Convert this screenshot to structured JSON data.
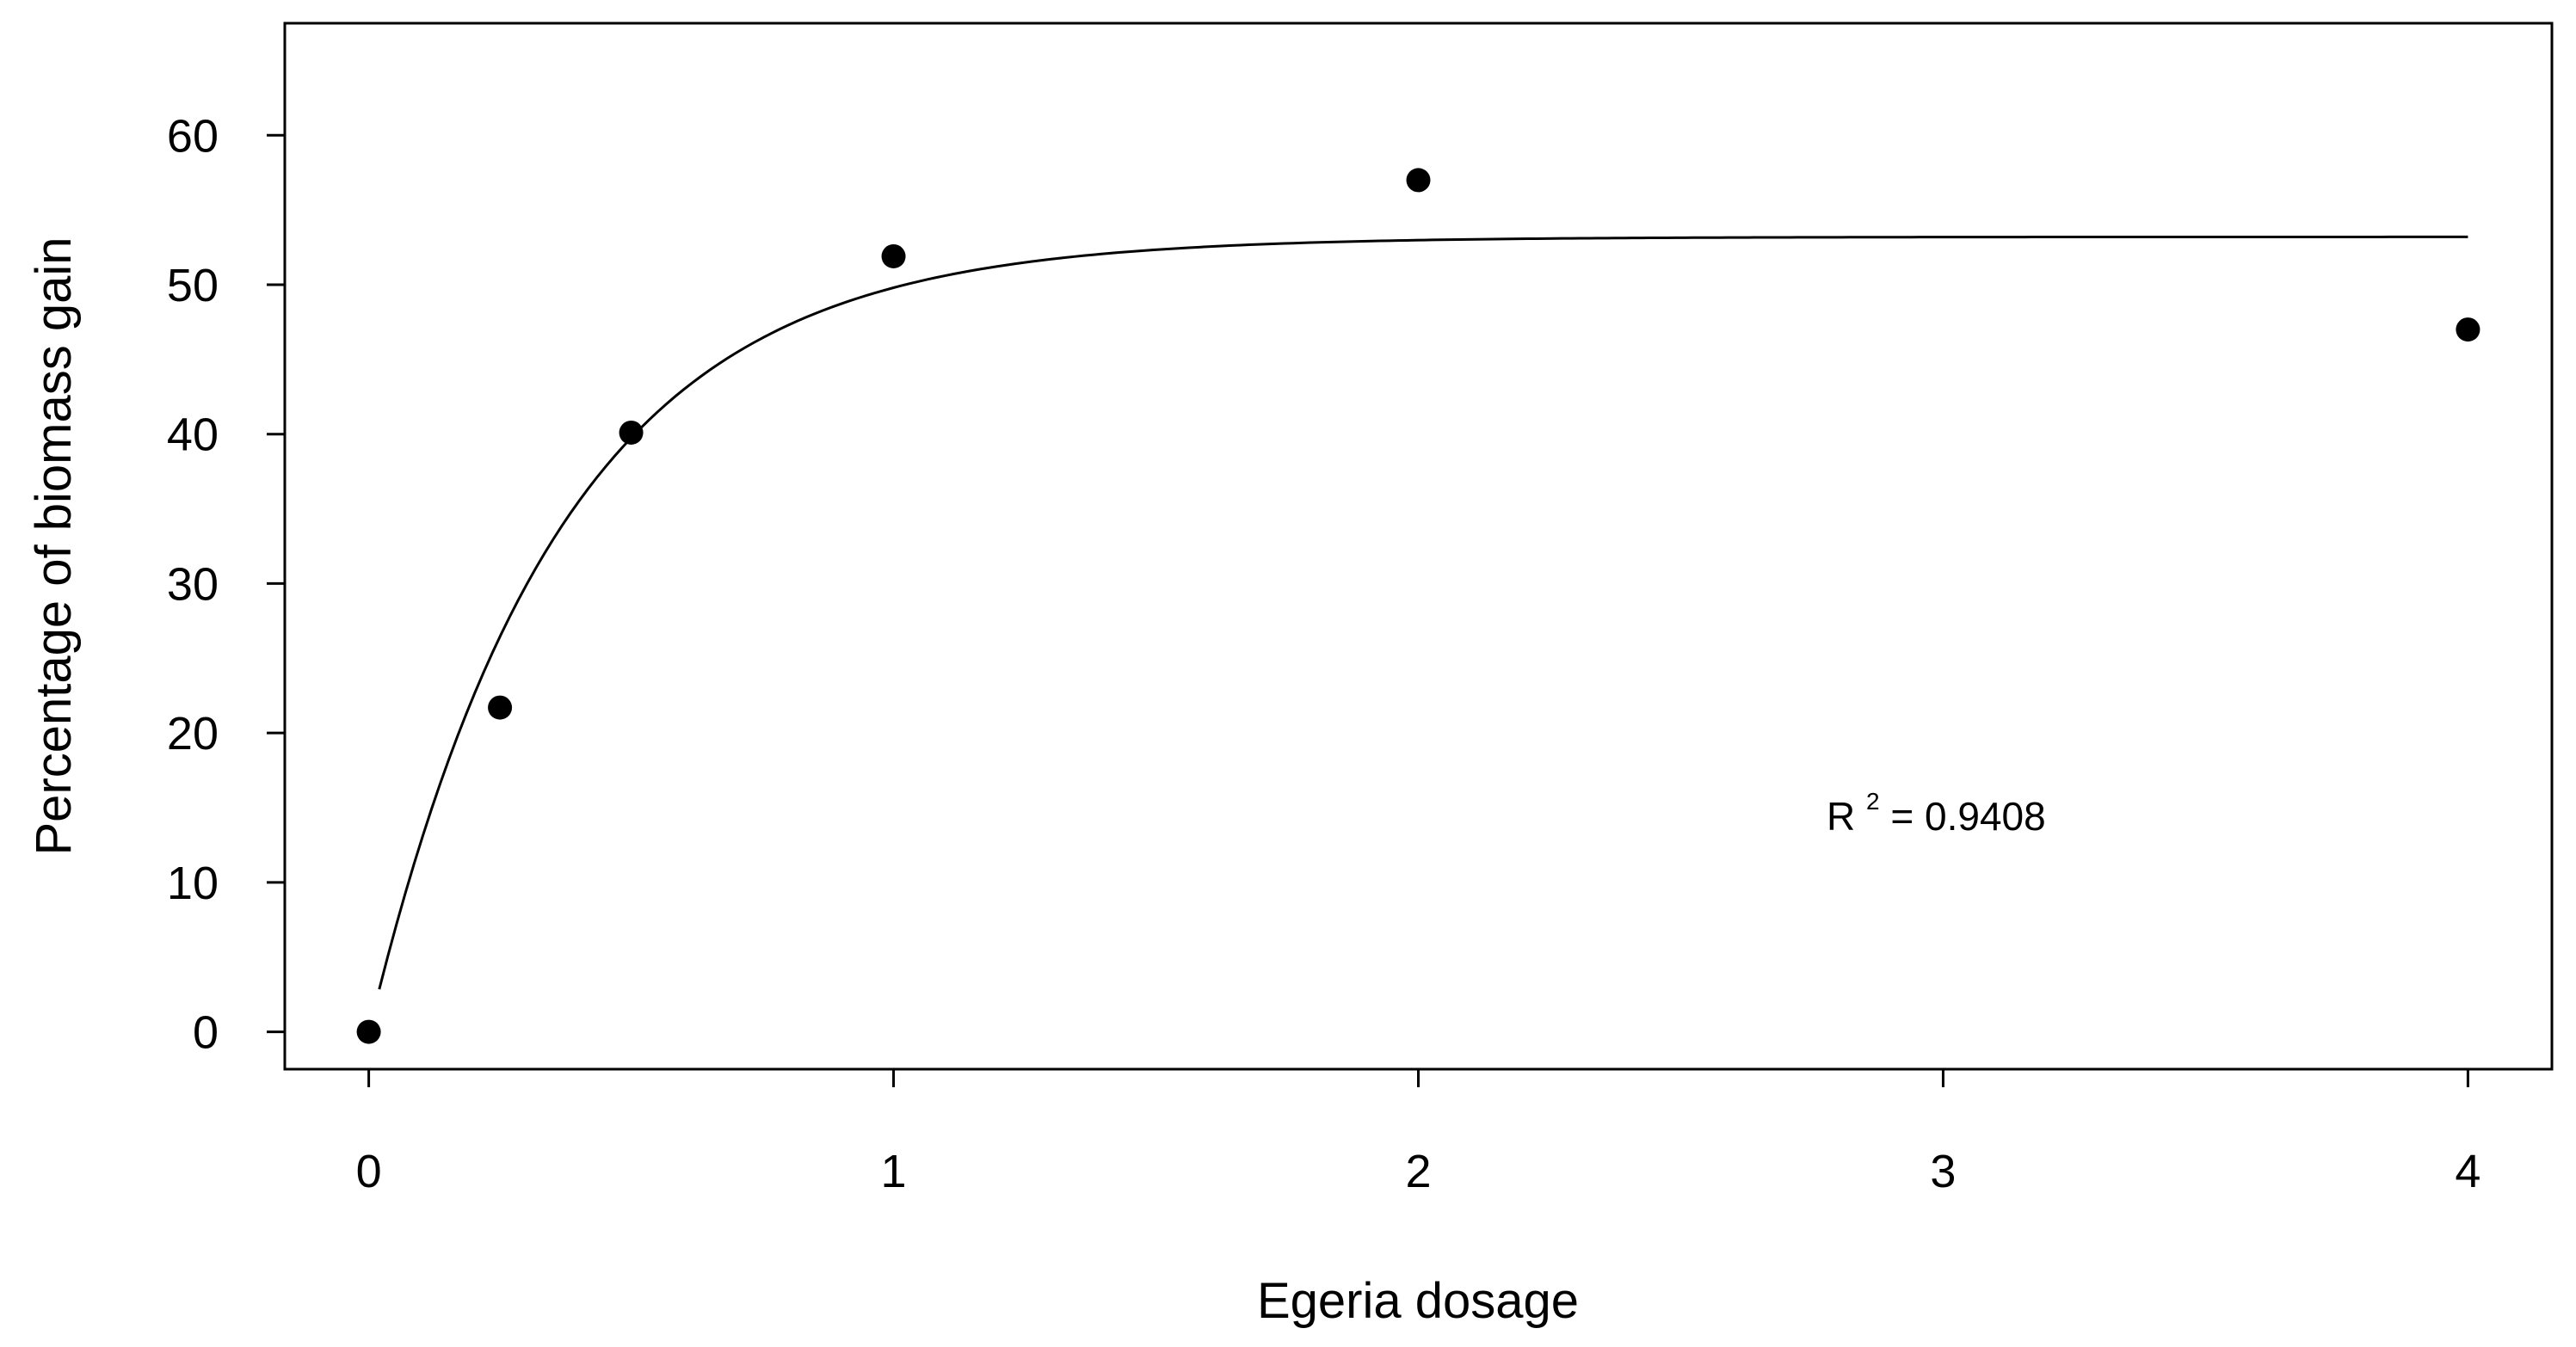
{
  "chart_data": {
    "type": "scatter",
    "title": "",
    "xlabel": "Egeria dosage",
    "ylabel": "Percentage of biomass gain",
    "xlim": [
      -0.16,
      4.16
    ],
    "ylim": [
      -2.5,
      67.5
    ],
    "xticks": [
      0,
      1,
      2,
      3,
      4
    ],
    "yticks": [
      0,
      10,
      20,
      30,
      40,
      50,
      60
    ],
    "grid": false,
    "series": [
      {
        "kind": "points",
        "x": [
          0,
          0.25,
          0.5,
          1,
          2,
          4
        ],
        "y": [
          0,
          21.7,
          40.1,
          51.9,
          57.0,
          47.0
        ]
      },
      {
        "kind": "fitted-line",
        "asymptote": 53.2,
        "rate": 2.75,
        "x_range": [
          0.02,
          4.0
        ]
      }
    ],
    "annotations": [
      {
        "base": "R",
        "superscript": "2",
        "text": " = 0.9408"
      }
    ]
  }
}
